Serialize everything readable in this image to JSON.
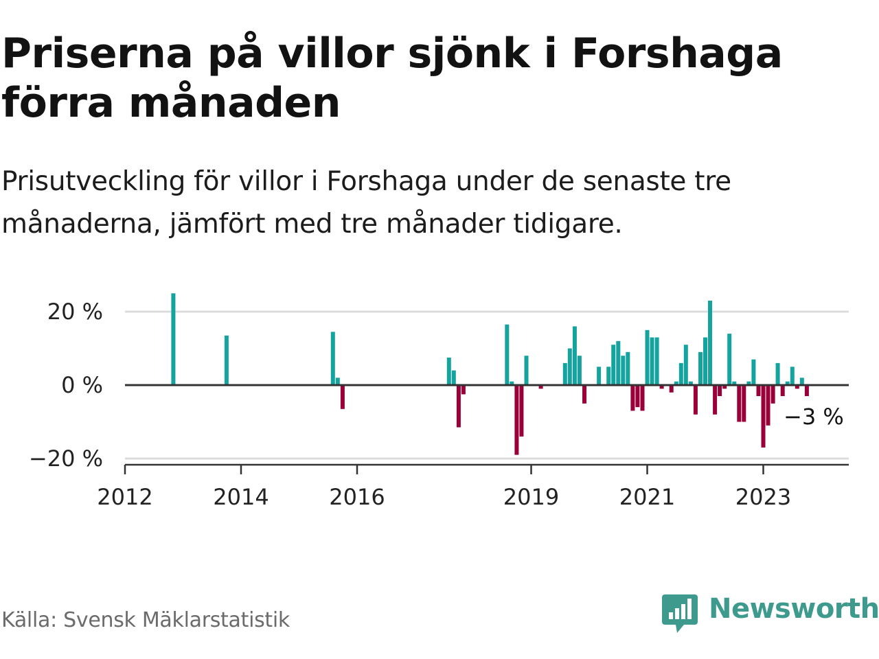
{
  "title": "Priserna på villor sjönk i Forshaga förra månaden",
  "subtitle": "Prisutveckling för villor i Forshaga under de senaste tre månaderna, jämfört med tre månader tidigare.",
  "source": "Källa: Svensk Mäklarstatistik",
  "brand": {
    "name": "Newsworthy",
    "icon": "newsworthy-chart-bubble-icon",
    "color": "#3f9a8e"
  },
  "colors": {
    "positive": "#15a3a0",
    "negative": "#99003a",
    "grid": "#dcdcdc",
    "axis": "#333333"
  },
  "chart_data": {
    "type": "bar",
    "title": "",
    "xlabel": "",
    "ylabel": "",
    "ylim": [
      -20,
      20
    ],
    "y_ticks": [
      {
        "value": 20,
        "label": "20 %"
      },
      {
        "value": 0,
        "label": "0 %"
      },
      {
        "value": -20,
        "label": "−20 %"
      }
    ],
    "x_ticks": [
      "2012",
      "2014",
      "2016",
      "2019",
      "2021",
      "2023"
    ],
    "grid": true,
    "annotation": {
      "label": "−3 %"
    },
    "series": [
      {
        "dates": [
          "2012-11",
          "2013-10",
          "2015-08",
          "2015-09",
          "2015-10",
          "2017-08",
          "2017-09",
          "2017-10",
          "2017-11",
          "2018-08",
          "2018-09",
          "2018-10",
          "2018-11",
          "2018-12",
          "2019-03",
          "2019-08",
          "2019-09",
          "2019-10",
          "2019-11",
          "2019-12",
          "2020-03",
          "2020-05",
          "2020-06",
          "2020-07",
          "2020-08",
          "2020-09",
          "2020-10",
          "2020-11",
          "2020-12",
          "2021-01",
          "2021-02",
          "2021-03",
          "2021-04",
          "2021-06",
          "2021-07",
          "2021-08",
          "2021-09",
          "2021-10",
          "2021-11",
          "2021-12",
          "2022-01",
          "2022-02",
          "2022-03",
          "2022-04",
          "2022-05",
          "2022-06",
          "2022-07",
          "2022-08",
          "2022-09",
          "2022-10",
          "2022-11",
          "2022-12",
          "2023-01",
          "2023-02",
          "2023-03",
          "2023-04",
          "2023-05",
          "2023-06",
          "2023-07",
          "2023-08",
          "2023-09",
          "2023-10"
        ],
        "values": [
          25,
          13.5,
          14.5,
          2,
          -6.5,
          7.5,
          4,
          -11.5,
          -2.5,
          16.5,
          1,
          -19,
          -14,
          8,
          -1,
          6,
          10,
          16,
          8,
          -5,
          5,
          5,
          11,
          12,
          8,
          9,
          -7,
          -6,
          -7,
          15,
          13,
          13,
          -1,
          -2,
          1,
          6,
          11,
          1,
          -8,
          9,
          13,
          23,
          -8,
          -3,
          -1,
          14,
          1,
          -10,
          -10,
          1,
          7,
          -3,
          -17,
          -11,
          -5,
          6,
          -3,
          1,
          5,
          -1,
          2,
          -3
        ]
      }
    ]
  }
}
